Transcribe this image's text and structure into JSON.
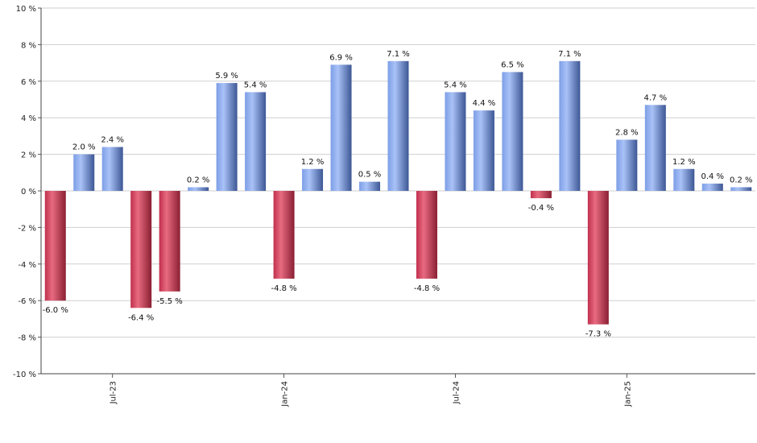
{
  "chart_data": {
    "type": "bar",
    "title": "",
    "xlabel": "",
    "ylabel": "",
    "ylim": [
      -10,
      10
    ],
    "y_ticks": [
      -10,
      -8,
      -6,
      -4,
      -2,
      0,
      2,
      4,
      6,
      8,
      10
    ],
    "y_tick_suffix": " %",
    "grid": true,
    "legend": "none",
    "colors": {
      "positive": "#7f9fe0",
      "negative": "#c8334f"
    },
    "values": [
      -6.0,
      2.0,
      2.4,
      -6.4,
      -5.5,
      0.2,
      5.9,
      5.4,
      -4.8,
      1.2,
      6.9,
      0.5,
      7.1,
      -4.8,
      5.4,
      4.4,
      6.5,
      -0.4,
      7.1,
      -7.3,
      2.8,
      4.7,
      1.2,
      0.4,
      0.2
    ],
    "labels": [
      "-6.0 %",
      "2.0 %",
      "2.4 %",
      "-6.4 %",
      "-5.5 %",
      "0.2 %",
      "5.9 %",
      "5.4 %",
      "-4.8 %",
      "1.2 %",
      "6.9 %",
      "0.5 %",
      "7.1 %",
      "-4.8 %",
      "5.4 %",
      "4.4 %",
      "6.5 %",
      "-0.4 %",
      "7.1 %",
      "-7.3 %",
      "2.8 %",
      "4.7 %",
      "1.2 %",
      "0.4 %",
      "0.2 %"
    ],
    "x_ticks": [
      {
        "label": "Jul-23",
        "index": 2.5
      },
      {
        "label": "Jan-24",
        "index": 8.5
      },
      {
        "label": "Jul-24",
        "index": 14.5
      },
      {
        "label": "Jan-25",
        "index": 20.5
      }
    ]
  }
}
